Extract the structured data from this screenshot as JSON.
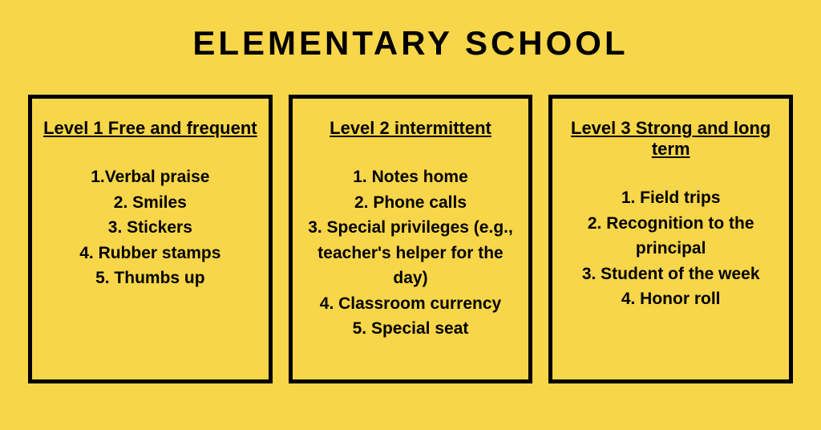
{
  "page": {
    "background_color": "#f8d649",
    "title": "ELEMENTARY SCHOOL",
    "title_fontsize": 42,
    "title_letter_spacing": 4,
    "title_color": "#000000"
  },
  "columns": {
    "level1": {
      "header": "Level 1 Free and frequent",
      "items": [
        "1.Verbal praise",
        "2. Smiles",
        "3. Stickers",
        "4. Rubber stamps",
        "5. Thumbs up"
      ]
    },
    "level2": {
      "header": "Level 2 intermittent",
      "items": [
        "1. Notes home",
        "2. Phone calls",
        "3. Special privileges (e.g., teacher's helper for the day)",
        "4. Classroom currency",
        "5. Special seat"
      ]
    },
    "level3": {
      "header": "Level 3 Strong and long term",
      "items": [
        "1. Field trips",
        "2. Recognition to the principal",
        "3. Student of the week",
        "4. Honor roll"
      ]
    }
  },
  "box_style": {
    "border_color": "#000000",
    "border_width": 5,
    "header_fontsize": 22,
    "item_fontsize": 21,
    "text_color": "#000000"
  }
}
